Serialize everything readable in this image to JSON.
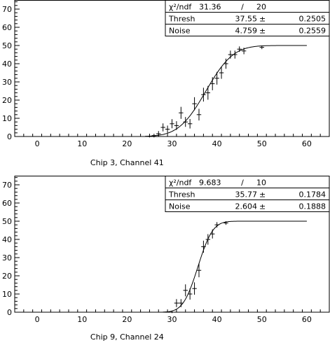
{
  "chart_data": [
    {
      "type": "scatter",
      "title": "Chip 3, Channel 41",
      "xlim": [
        -5,
        65
      ],
      "ylim": [
        0,
        75
      ],
      "xticks": [
        0,
        10,
        20,
        30,
        40,
        50,
        60
      ],
      "yticks": [
        0,
        10,
        20,
        30,
        40,
        50,
        60,
        70
      ],
      "xtick_labels": [
        "0",
        "10",
        "20",
        "30",
        "40",
        "50",
        "60"
      ],
      "ytick_labels": [
        "0",
        "10",
        "20",
        "30",
        "40",
        "50",
        "60",
        "70"
      ],
      "grid": false,
      "stats": {
        "chi2_label": "χ²/ndf",
        "chi2": "31.36",
        "separator": "/",
        "ndf": "20",
        "rows": [
          {
            "label": "Thresh",
            "value": "37.55",
            "pm": "±",
            "error": "0.2505"
          },
          {
            "label": "Noise",
            "value": "4.759",
            "pm": "±",
            "error": "0.2559"
          }
        ]
      },
      "fit": {
        "type": "erf_s_curve",
        "plateau": 50,
        "mean": 37.55,
        "sigma": 4.759,
        "x_range": [
          24,
          60
        ]
      },
      "points": [
        {
          "x": 25,
          "y": 0,
          "yerr": 0.5
        },
        {
          "x": 26,
          "y": 0.5,
          "yerr": 1
        },
        {
          "x": 27,
          "y": 1.5,
          "yerr": 1.5
        },
        {
          "x": 28,
          "y": 5,
          "yerr": 2.2
        },
        {
          "x": 29,
          "y": 4,
          "yerr": 2
        },
        {
          "x": 30,
          "y": 7,
          "yerr": 2.5
        },
        {
          "x": 31,
          "y": 6,
          "yerr": 2.4
        },
        {
          "x": 32,
          "y": 13,
          "yerr": 3.3
        },
        {
          "x": 33,
          "y": 8,
          "yerr": 2.7
        },
        {
          "x": 34,
          "y": 7,
          "yerr": 2.6
        },
        {
          "x": 35,
          "y": 18,
          "yerr": 3.6
        },
        {
          "x": 36,
          "y": 12,
          "yerr": 3.2
        },
        {
          "x": 37,
          "y": 23,
          "yerr": 3.8
        },
        {
          "x": 38,
          "y": 24,
          "yerr": 3.8
        },
        {
          "x": 39,
          "y": 29,
          "yerr": 3.6
        },
        {
          "x": 40,
          "y": 32,
          "yerr": 3.5
        },
        {
          "x": 41,
          "y": 35,
          "yerr": 3.3
        },
        {
          "x": 42,
          "y": 40,
          "yerr": 2.8
        },
        {
          "x": 43,
          "y": 45,
          "yerr": 2.2
        },
        {
          "x": 44,
          "y": 45,
          "yerr": 2.2
        },
        {
          "x": 45,
          "y": 48,
          "yerr": 1.5
        },
        {
          "x": 46,
          "y": 47,
          "yerr": 1.8
        },
        {
          "x": 50,
          "y": 49,
          "yerr": 1
        }
      ]
    },
    {
      "type": "scatter",
      "title": "Chip 9, Channel 24",
      "xlim": [
        -5,
        65
      ],
      "ylim": [
        0,
        75
      ],
      "xticks": [
        0,
        10,
        20,
        30,
        40,
        50,
        60
      ],
      "yticks": [
        0,
        10,
        20,
        30,
        40,
        50,
        60,
        70
      ],
      "xtick_labels": [
        "0",
        "10",
        "20",
        "30",
        "40",
        "50",
        "60"
      ],
      "ytick_labels": [
        "0",
        "10",
        "20",
        "30",
        "40",
        "50",
        "60",
        "70"
      ],
      "grid": false,
      "stats": {
        "chi2_label": "χ²/ndf",
        "chi2": "9.683",
        "separator": "/",
        "ndf": "10",
        "rows": [
          {
            "label": "Thresh",
            "value": "35.77",
            "pm": "±",
            "error": "0.1784"
          },
          {
            "label": "Noise",
            "value": "2.604",
            "pm": "±",
            "error": "0.1888"
          }
        ]
      },
      "fit": {
        "type": "erf_s_curve",
        "plateau": 50,
        "mean": 35.77,
        "sigma": 2.604,
        "x_range": [
          28,
          60
        ]
      },
      "points": [
        {
          "x": 30,
          "y": 0,
          "yerr": 0.5
        },
        {
          "x": 31,
          "y": 5,
          "yerr": 2.2
        },
        {
          "x": 32,
          "y": 5,
          "yerr": 2.2
        },
        {
          "x": 33,
          "y": 12,
          "yerr": 3.3
        },
        {
          "x": 34,
          "y": 10,
          "yerr": 3.1
        },
        {
          "x": 35,
          "y": 13,
          "yerr": 3.4
        },
        {
          "x": 36,
          "y": 23,
          "yerr": 3.8
        },
        {
          "x": 37,
          "y": 36,
          "yerr": 3.3
        },
        {
          "x": 38,
          "y": 40,
          "yerr": 2.9
        },
        {
          "x": 39,
          "y": 43,
          "yerr": 2.5
        },
        {
          "x": 40,
          "y": 48,
          "yerr": 1.5
        },
        {
          "x": 42,
          "y": 49,
          "yerr": 1
        }
      ]
    }
  ]
}
